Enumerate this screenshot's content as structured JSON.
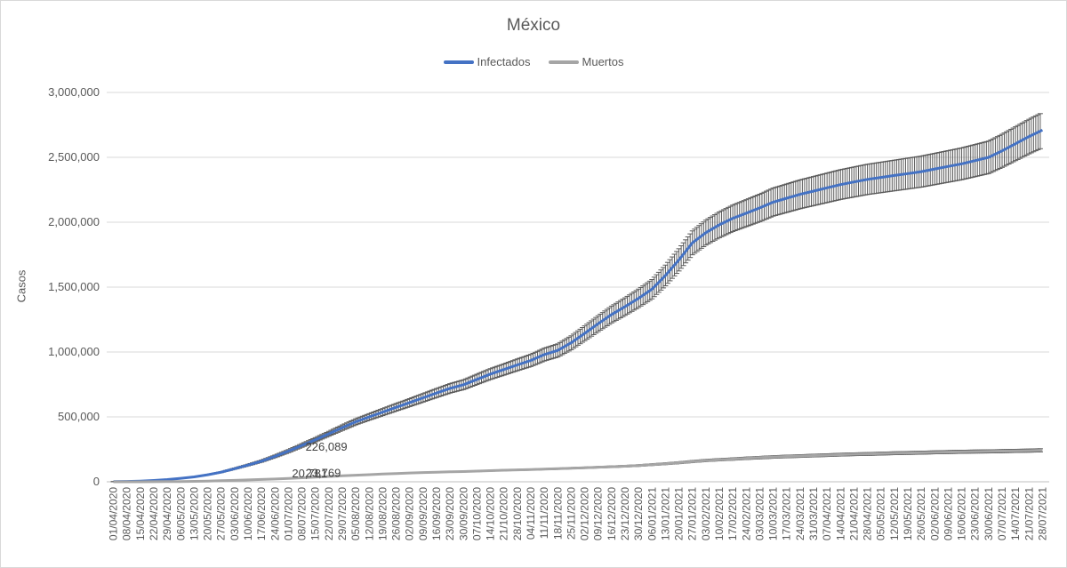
{
  "chart_data": {
    "type": "line",
    "title": "México",
    "ylabel": "Casos",
    "xlabel": "",
    "ylim": [
      0,
      3000000
    ],
    "yticks": [
      0,
      500000,
      1000000,
      1500000,
      2000000,
      2500000,
      3000000
    ],
    "ytick_labels": [
      "0",
      "500,000",
      "1,000,000",
      "1,500,000",
      "2,000,000",
      "2,500,000",
      "3,000,000"
    ],
    "legend_position": "top",
    "grid": true,
    "x_dates": [
      "01/04/2020",
      "08/04/2020",
      "15/04/2020",
      "22/04/2020",
      "29/04/2020",
      "06/05/2020",
      "13/05/2020",
      "20/05/2020",
      "27/05/2020",
      "03/06/2020",
      "10/06/2020",
      "17/06/2020",
      "24/06/2020",
      "01/07/2020",
      "08/07/2020",
      "15/07/2020",
      "22/07/2020",
      "29/07/2020",
      "05/08/2020",
      "12/08/2020",
      "19/08/2020",
      "26/08/2020",
      "02/09/2020",
      "09/09/2020",
      "16/09/2020",
      "23/09/2020",
      "30/09/2020",
      "07/10/2020",
      "14/10/2020",
      "21/10/2020",
      "28/10/2020",
      "04/11/2020",
      "11/11/2020",
      "18/11/2020",
      "25/11/2020",
      "02/12/2020",
      "09/12/2020",
      "16/12/2020",
      "23/12/2020",
      "30/12/2020",
      "06/01/2021",
      "13/01/2021",
      "20/01/2021",
      "27/01/2021",
      "03/02/2021",
      "10/02/2021",
      "17/02/2021",
      "24/02/2021",
      "03/03/2021",
      "10/03/2021",
      "17/03/2021",
      "24/03/2021",
      "31/03/2021",
      "07/04/2021",
      "14/04/2021",
      "21/04/2021",
      "28/04/2021",
      "05/05/2021",
      "12/05/2021",
      "19/05/2021",
      "26/05/2021",
      "02/06/2021",
      "09/06/2021",
      "16/06/2021",
      "23/06/2021",
      "30/06/2021",
      "07/07/2021",
      "14/07/2021",
      "21/07/2021",
      "28/07/2021"
    ],
    "series": [
      {
        "name": "Infectados",
        "color": "#4472c4",
        "values": [
          1500,
          3000,
          5500,
          10000,
          17000,
          27000,
          38000,
          54000,
          74000,
          101000,
          129000,
          159000,
          196000,
          236000,
          280000,
          324000,
          370000,
          417000,
          462000,
          500000,
          537000,
          574000,
          610000,
          647000,
          684000,
          720000,
          748000,
          789000,
          830000,
          865000,
          901000,
          935000,
          980000,
          1012000,
          1071000,
          1144000,
          1218000,
          1289000,
          1350000,
          1414000,
          1484000,
          1590000,
          1710000,
          1841000,
          1920000,
          1980000,
          2030000,
          2070000,
          2110000,
          2155000,
          2185000,
          2215000,
          2240000,
          2265000,
          2290000,
          2310000,
          2330000,
          2345000,
          2360000,
          2375000,
          2390000,
          2410000,
          2430000,
          2450000,
          2475000,
          2500000,
          2550000,
          2605000,
          2660000,
          2710000
        ],
        "error": 0.05
      },
      {
        "name": "Muertos",
        "color": "#a5a5a5",
        "values": [
          40,
          100,
          300,
          700,
          1200,
          2000,
          3500,
          5500,
          8000,
          11000,
          14500,
          18000,
          21500,
          26000,
          31000,
          36000,
          41000,
          46000,
          50500,
          55000,
          59500,
          63500,
          67500,
          71000,
          74000,
          77000,
          79000,
          82000,
          85500,
          89000,
          91500,
          94000,
          97500,
          100500,
          104500,
          108000,
          112000,
          116000,
          120000,
          125000,
          132000,
          139000,
          147000,
          156000,
          164000,
          170000,
          175000,
          181000,
          186000,
          191000,
          195000,
          198000,
          202000,
          205000,
          209000,
          212000,
          214000,
          217000,
          220000,
          222000,
          224000,
          227000,
          229000,
          231000,
          233000,
          234000,
          236000,
          238000,
          240000,
          243000
        ],
        "error": 0.05
      }
    ],
    "annotations": [
      {
        "text": "226,089",
        "x": "08/07/2020",
        "y": 226089
      },
      {
        "text": "20,781",
        "x": "01/07/2020",
        "y": 20781
      },
      {
        "text": "23,769",
        "x": "08/07/2020",
        "y": 23769
      }
    ]
  }
}
